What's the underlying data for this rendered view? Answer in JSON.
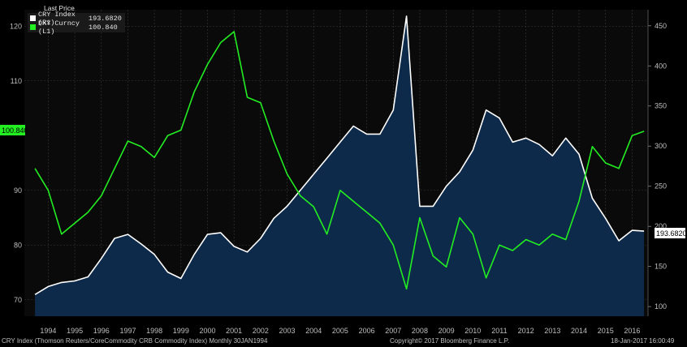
{
  "legend": {
    "header": "Last Price",
    "items": [
      {
        "name": "CRY Index  (R1)",
        "value": "193.6820",
        "color": "#ffffff"
      },
      {
        "name": "DXY Curncy  (L1)",
        "value": "100.840",
        "color": "#22ee22"
      }
    ]
  },
  "tags": {
    "dxy": "100.840",
    "cry": "193.6820"
  },
  "footer": {
    "left": "CRY Index (Thomson Reuters/CoreCommodity CRB Commodity Index)  Monthly 30JAN1994",
    "center": "Copyright© 2017 Bloomberg Finance L.P.",
    "right": "18-Jan-2017 16:00:49"
  },
  "colors": {
    "background": "#000000",
    "area_fill": "#0e2a4a",
    "cry_line": "#ffffff",
    "dxy_line": "#22ee22",
    "grid": "#3a3a3a"
  },
  "chart_data": {
    "type": "line",
    "x_ticks": [
      "1994",
      "1995",
      "1996",
      "1997",
      "1998",
      "1999",
      "2000",
      "2001",
      "2002",
      "2003",
      "2004",
      "2005",
      "2006",
      "2007",
      "2008",
      "2009",
      "2010",
      "2011",
      "2012",
      "2013",
      "2014",
      "2015",
      "2016"
    ],
    "left_axis": {
      "ticks": [
        70,
        80,
        90,
        110,
        120
      ],
      "ylim": [
        67,
        123
      ]
    },
    "right_axis": {
      "ticks": [
        100,
        150,
        200,
        250,
        300,
        350,
        400,
        450
      ],
      "ylim": [
        88,
        470
      ]
    },
    "series": [
      {
        "name": "CRY Index (R1)",
        "axis": "right",
        "style": "area",
        "x": [
          1994.0,
          1994.5,
          1995.0,
          1995.5,
          1996.0,
          1996.5,
          1997.0,
          1997.5,
          1998.0,
          1998.5,
          1999.0,
          1999.5,
          2000.0,
          2000.5,
          2001.0,
          2001.5,
          2002.0,
          2002.5,
          2003.0,
          2003.5,
          2004.0,
          2004.5,
          2005.0,
          2005.5,
          2006.0,
          2006.5,
          2007.0,
          2007.5,
          2008.0,
          2008.5,
          2009.0,
          2009.5,
          2010.0,
          2010.5,
          2011.0,
          2011.5,
          2012.0,
          2012.5,
          2013.0,
          2013.5,
          2014.0,
          2014.5,
          2015.0,
          2015.5,
          2016.0,
          2016.5,
          2016.95
        ],
        "values": [
          115,
          125,
          130,
          132,
          137,
          160,
          185,
          190,
          178,
          165,
          143,
          135,
          165,
          190,
          192,
          175,
          168,
          185,
          210,
          225,
          245,
          265,
          285,
          305,
          325,
          315,
          315,
          345,
          462,
          225,
          225,
          250,
          268,
          295,
          345,
          335,
          305,
          310,
          302,
          288,
          310,
          290,
          235,
          210,
          182,
          195,
          194
        ]
      },
      {
        "name": "DXY Curncy (L1)",
        "axis": "left",
        "style": "line",
        "x": [
          1994.0,
          1994.5,
          1995.0,
          1995.5,
          1996.0,
          1996.5,
          1997.0,
          1997.5,
          1998.0,
          1998.5,
          1999.0,
          1999.5,
          2000.0,
          2000.5,
          2001.0,
          2001.5,
          2002.0,
          2002.5,
          2003.0,
          2003.5,
          2004.0,
          2004.5,
          2005.0,
          2005.5,
          2006.0,
          2006.5,
          2007.0,
          2007.5,
          2008.0,
          2008.5,
          2009.0,
          2009.5,
          2010.0,
          2010.5,
          2011.0,
          2011.5,
          2012.0,
          2012.5,
          2013.0,
          2013.5,
          2014.0,
          2014.5,
          2015.0,
          2015.5,
          2016.0,
          2016.5,
          2016.95
        ],
        "values": [
          94,
          90,
          82,
          84,
          86,
          89,
          94,
          99,
          98,
          96,
          100,
          101,
          108,
          113,
          117,
          119,
          107,
          106,
          99,
          93,
          89,
          87,
          82,
          90,
          88,
          86,
          84,
          80,
          72,
          85,
          78,
          76,
          85,
          82,
          74,
          80,
          79,
          81,
          80,
          82,
          81,
          88,
          98,
          95,
          94,
          100,
          100.8
        ]
      }
    ]
  }
}
